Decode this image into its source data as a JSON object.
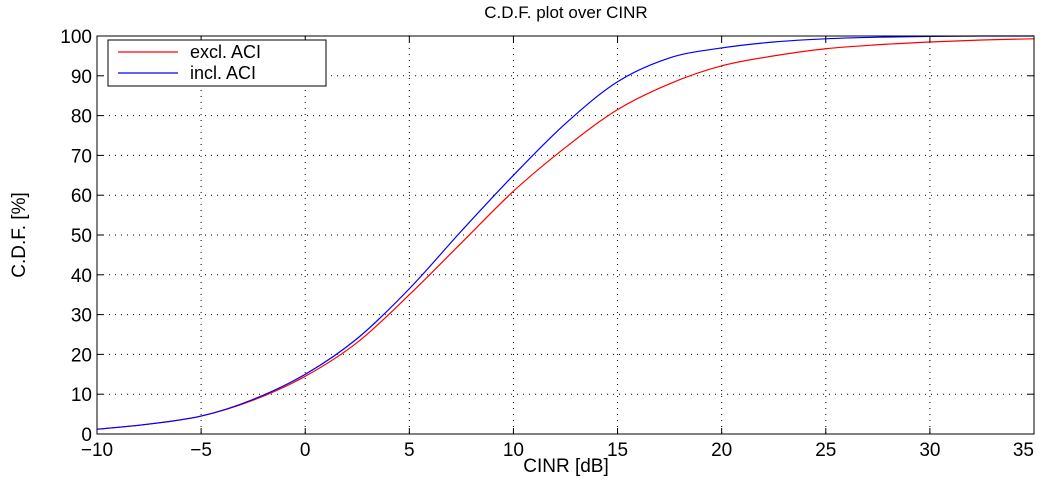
{
  "chart_data": {
    "type": "line",
    "title": "C.D.F. plot over CINR",
    "xlabel": "CINR [dB]",
    "ylabel": "C.D.F. [%]",
    "xlim": [
      -10,
      35
    ],
    "ylim": [
      0,
      100
    ],
    "xticks": [
      -10,
      -5,
      0,
      5,
      10,
      15,
      20,
      25,
      30,
      35
    ],
    "yticks": [
      0,
      10,
      20,
      30,
      40,
      50,
      60,
      70,
      80,
      90,
      100
    ],
    "xtick_labels": [
      "−10",
      "−5",
      "0",
      "5",
      "10",
      "15",
      "20",
      "25",
      "30",
      "35"
    ],
    "ytick_labels": [
      "0",
      "10",
      "20",
      "30",
      "40",
      "50",
      "60",
      "70",
      "80",
      "90",
      "100"
    ],
    "grid": true,
    "legend_position": "top-left",
    "series": [
      {
        "name": "excl. ACI",
        "color": "#ff0000",
        "x": [
          -10,
          -7.5,
          -5,
          -2.5,
          0,
          2.5,
          5,
          7.5,
          10,
          12.5,
          15,
          17.5,
          20,
          22.5,
          25,
          27.5,
          30,
          32.5,
          35
        ],
        "y": [
          1.2,
          2.5,
          4.5,
          8.5,
          14.5,
          23,
          35,
          48,
          61,
          72,
          81.5,
          88,
          92.5,
          95,
          96.8,
          97.8,
          98.5,
          99,
          99.3
        ]
      },
      {
        "name": "incl. ACI",
        "color": "#0000ff",
        "x": [
          -10,
          -7.5,
          -5,
          -2.5,
          0,
          2.5,
          5,
          7.5,
          10,
          12.5,
          15,
          17.5,
          20,
          22.5,
          25,
          27.5,
          30,
          32.5,
          35
        ],
        "y": [
          1.2,
          2.5,
          4.5,
          8.7,
          15,
          24,
          36.5,
          51,
          65,
          78,
          88.5,
          94.5,
          97,
          98.5,
          99.3,
          99.7,
          99.9,
          100,
          100
        ]
      }
    ]
  }
}
